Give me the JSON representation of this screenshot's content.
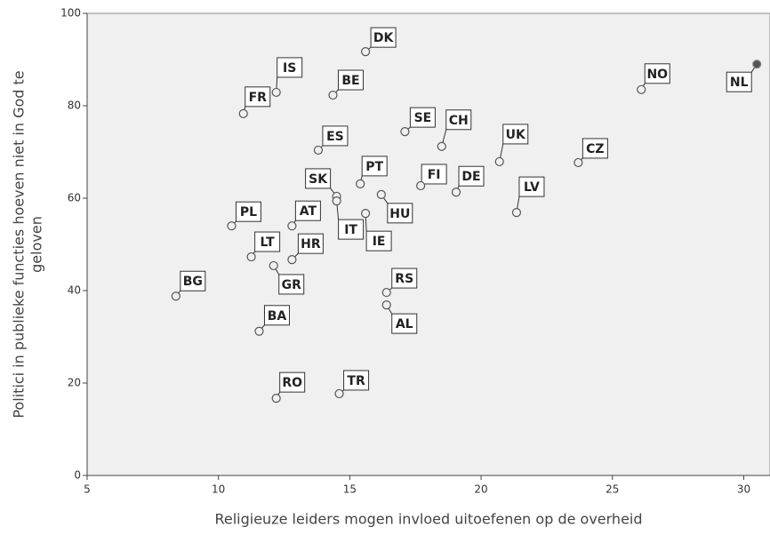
{
  "chart_data": {
    "type": "scatter",
    "xlabel": "Religieuze leiders mogen invloed uitoefenen op de overheid",
    "ylabel": [
      "Politici in publieke functies hoeven niet in God te",
      "geloven"
    ],
    "series": [
      {
        "name": null,
        "color": "#555555",
        "point_labels": [
          "DK",
          "IS",
          "FR",
          "BE",
          "NO",
          "NL",
          "ES",
          "SE",
          "CH",
          "UK",
          "CZ",
          "SK",
          "IT",
          "PT",
          "FI",
          "DE",
          "HU",
          "IE",
          "LV",
          "PL",
          "AT",
          "LT",
          "HR",
          "GR",
          "BG",
          "RS",
          "AL",
          "BA",
          "RO",
          "TR"
        ],
        "x": [
          15.6,
          12.2,
          10.95,
          14.36,
          26.1,
          30.5,
          13.8,
          17.1,
          18.5,
          20.7,
          23.7,
          14.5,
          14.5,
          15.4,
          17.7,
          19.05,
          16.2,
          15.6,
          21.35,
          10.5,
          12.8,
          11.25,
          12.8,
          12.1,
          8.38,
          16.4,
          16.4,
          11.55,
          12.2,
          14.6
        ],
        "values": [
          91.7,
          82.9,
          78.3,
          82.3,
          83.5,
          89.0,
          70.4,
          74.4,
          71.2,
          67.9,
          67.7,
          60.4,
          59.4,
          63.1,
          62.7,
          61.3,
          60.8,
          56.7,
          56.9,
          54.0,
          54.0,
          47.3,
          46.7,
          45.4,
          38.8,
          39.6,
          36.9,
          31.2,
          16.7,
          17.7
        ],
        "filled_points": [
          5
        ]
      }
    ],
    "xlim": [
      5,
      31
    ],
    "ylim": [
      0,
      100
    ],
    "xticks": [
      5,
      10,
      15,
      20,
      25,
      30
    ],
    "yticks": [
      0,
      20,
      40,
      60,
      80,
      100
    ],
    "grid": false
  }
}
